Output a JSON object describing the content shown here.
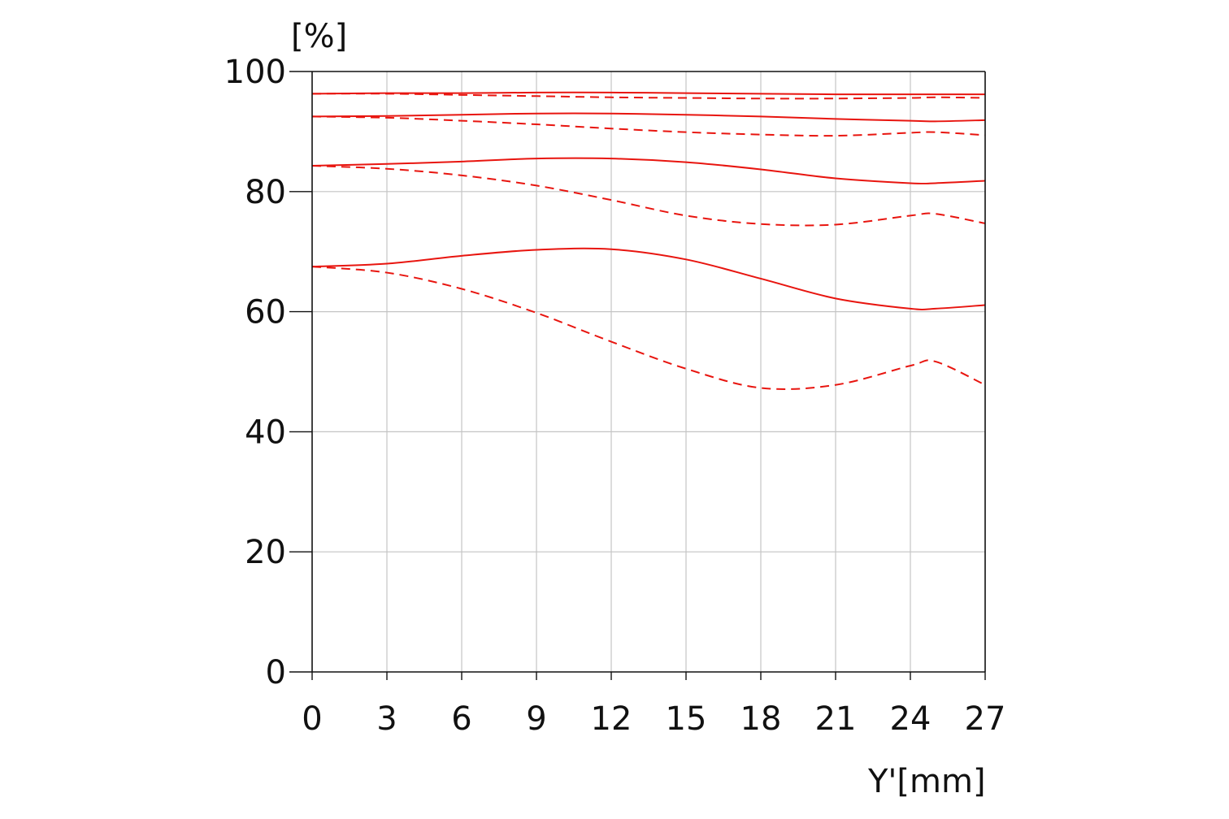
{
  "chart_data": {
    "type": "line",
    "title": "",
    "xlabel": "Y'[mm]",
    "ylabel": "[%]",
    "xlim": [
      0,
      27
    ],
    "ylim": [
      0,
      100
    ],
    "xticks": [
      "0",
      "3",
      "6",
      "9",
      "12",
      "15",
      "18",
      "21",
      "24",
      "27"
    ],
    "yticks": [
      "0",
      "20",
      "40",
      "60",
      "80",
      "100"
    ],
    "grid": true,
    "legend": "none",
    "line_color": "#e8150f",
    "x": [
      0,
      3,
      6,
      9,
      12,
      15,
      18,
      21,
      24,
      25,
      27
    ],
    "series": [
      {
        "style": "solid",
        "values": [
          96.3,
          96.4,
          96.4,
          96.5,
          96.5,
          96.4,
          96.3,
          96.2,
          96.2,
          96.2,
          96.2
        ]
      },
      {
        "style": "dashed",
        "values": [
          96.3,
          96.3,
          96.1,
          95.9,
          95.7,
          95.6,
          95.5,
          95.5,
          95.6,
          95.7,
          95.6
        ]
      },
      {
        "style": "solid",
        "values": [
          92.5,
          92.6,
          92.8,
          93.0,
          93.0,
          92.8,
          92.5,
          92.1,
          91.8,
          91.7,
          91.9
        ]
      },
      {
        "style": "dashed",
        "values": [
          92.5,
          92.3,
          91.8,
          91.2,
          90.5,
          89.9,
          89.5,
          89.3,
          89.8,
          89.9,
          89.4
        ]
      },
      {
        "style": "solid",
        "values": [
          84.3,
          84.6,
          85.0,
          85.5,
          85.5,
          84.9,
          83.7,
          82.2,
          81.4,
          81.4,
          81.8
        ]
      },
      {
        "style": "dashed",
        "values": [
          84.3,
          83.8,
          82.7,
          81.0,
          78.6,
          76.0,
          74.6,
          74.5,
          76.0,
          76.3,
          74.7
        ]
      },
      {
        "style": "solid",
        "values": [
          67.5,
          68.0,
          69.3,
          70.3,
          70.4,
          68.7,
          65.5,
          62.2,
          60.5,
          60.5,
          61.1
        ]
      },
      {
        "style": "dashed",
        "values": [
          67.5,
          66.5,
          63.8,
          59.8,
          55.0,
          50.5,
          47.3,
          47.8,
          51.0,
          51.7,
          47.8
        ]
      }
    ]
  }
}
